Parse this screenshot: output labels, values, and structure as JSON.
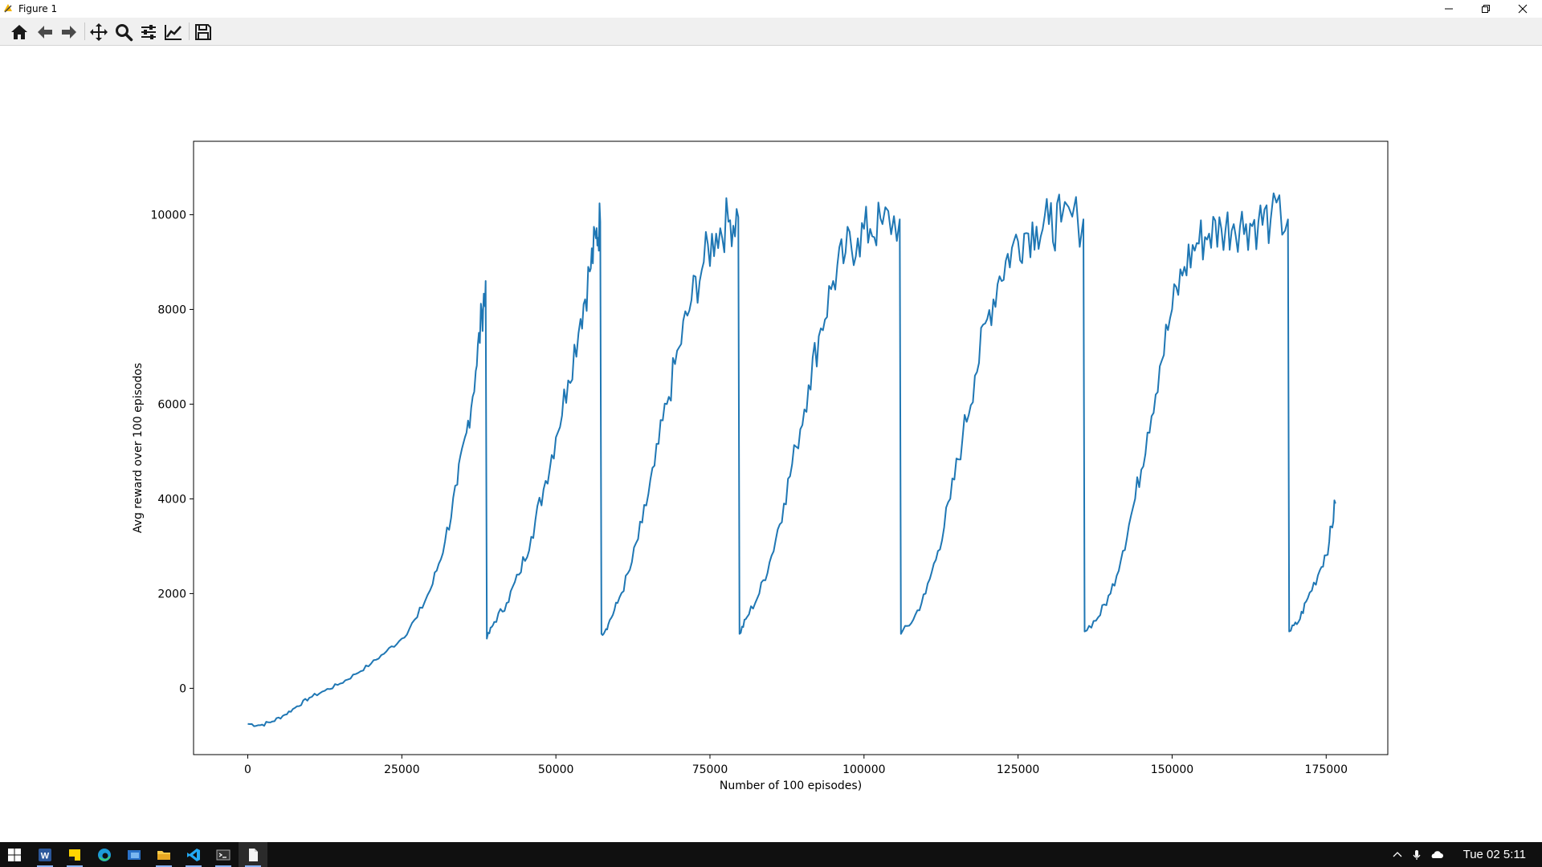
{
  "window": {
    "title": "Figure 1",
    "minimize_icon": "minimize-icon",
    "maximize_icon": "restore-icon",
    "close_icon": "close-icon"
  },
  "toolbar": {
    "buttons": [
      {
        "name": "home",
        "icon": "home-icon"
      },
      {
        "name": "back",
        "icon": "arrow-left-icon"
      },
      {
        "name": "forward",
        "icon": "arrow-right-icon"
      },
      {
        "name": "pan",
        "icon": "move-icon"
      },
      {
        "name": "zoom",
        "icon": "magnifier-icon"
      },
      {
        "name": "configure-subplots",
        "icon": "sliders-icon"
      },
      {
        "name": "edit-axis",
        "icon": "line-chart-icon"
      },
      {
        "name": "save",
        "icon": "floppy-disk-icon"
      }
    ]
  },
  "chart_data": {
    "type": "line",
    "title": "",
    "xlabel": "Number of 100 episodes)",
    "ylabel": "Avg reward over 100 episodos",
    "xlim": [
      -8800,
      185000
    ],
    "ylim": [
      -1400,
      11550
    ],
    "xticks": [
      0,
      25000,
      50000,
      75000,
      100000,
      125000,
      150000,
      175000
    ],
    "xtick_labels": [
      "0",
      "25000",
      "50000",
      "75000",
      "100000",
      "125000",
      "150000",
      "175000"
    ],
    "yticks": [
      0,
      2000,
      4000,
      6000,
      8000,
      10000
    ],
    "ytick_labels": [
      "0",
      "2000",
      "4000",
      "6000",
      "8000",
      "10000"
    ],
    "grid": false,
    "line_color": "#1f77b4",
    "series": [
      {
        "x": [
          0,
          2000,
          4000,
          6000,
          8000,
          10000,
          12500,
          15000,
          17500,
          20000,
          22500,
          25000,
          27500,
          30000,
          32000,
          34000,
          35500,
          37000,
          38000,
          38600,
          38800,
          40000,
          42000,
          44000,
          46000,
          48000,
          50000,
          52000,
          54000,
          55500,
          56500,
          57200,
          57400,
          58500,
          60000,
          62000,
          64000,
          66000,
          68000,
          70000,
          72000,
          74000,
          76000,
          78000,
          79600,
          79800,
          81000,
          83000,
          85000,
          87000,
          89000,
          91000,
          93000,
          95000,
          97000,
          99000,
          101000,
          103000,
          105800,
          106000,
          108000,
          110000,
          112000,
          114000,
          116000,
          118000,
          120000,
          122000,
          124000,
          126000,
          128000,
          130000,
          132000,
          135600,
          135800,
          138000,
          140000,
          142000,
          144000,
          146000,
          148000,
          150000,
          152000,
          154000,
          156000,
          158000,
          160000,
          162000,
          164000,
          166000,
          168800,
          169000,
          170500,
          172000,
          174000,
          175500,
          176500
        ],
        "y": [
          -750,
          -780,
          -700,
          -560,
          -380,
          -200,
          -50,
          100,
          300,
          520,
          780,
          1050,
          1500,
          2200,
          3100,
          4300,
          5400,
          6700,
          7900,
          8600,
          1050,
          1400,
          1800,
          2400,
          3200,
          4200,
          5300,
          6500,
          7800,
          8800,
          9500,
          9850,
          1150,
          1350,
          1800,
          2500,
          3500,
          4700,
          6000,
          7200,
          8200,
          9000,
          9600,
          9850,
          9950,
          1150,
          1500,
          2000,
          2800,
          3900,
          5100,
          6400,
          7600,
          8600,
          9200,
          9500,
          9700,
          9800,
          9900,
          1150,
          1450,
          2000,
          2900,
          4000,
          5300,
          6600,
          7800,
          8700,
          9300,
          9600,
          9750,
          9800,
          9850,
          9900,
          1200,
          1500,
          2000,
          2900,
          4000,
          5400,
          6800,
          8000,
          8900,
          9400,
          9600,
          9700,
          9800,
          9800,
          9850,
          9900,
          9900,
          1200,
          1400,
          1900,
          2500,
          3100,
          3900
        ]
      }
    ]
  },
  "taskbar": {
    "items": [
      {
        "name": "start",
        "icon": "windows-logo-icon"
      },
      {
        "name": "word",
        "icon": "word-icon"
      },
      {
        "name": "sticky-notes",
        "icon": "sticky-notes-icon"
      },
      {
        "name": "edge",
        "icon": "edge-browser-icon"
      },
      {
        "name": "outlook",
        "icon": "mail-app-icon"
      },
      {
        "name": "file-explorer",
        "icon": "folder-icon"
      },
      {
        "name": "vscode",
        "icon": "vscode-icon"
      },
      {
        "name": "terminal",
        "icon": "terminal-icon"
      },
      {
        "name": "document",
        "icon": "document-icon"
      }
    ],
    "tray_icons": [
      "chevron-up-icon",
      "microphone-icon",
      "cloud-icon"
    ],
    "clock": "Tue 02 5:11"
  }
}
